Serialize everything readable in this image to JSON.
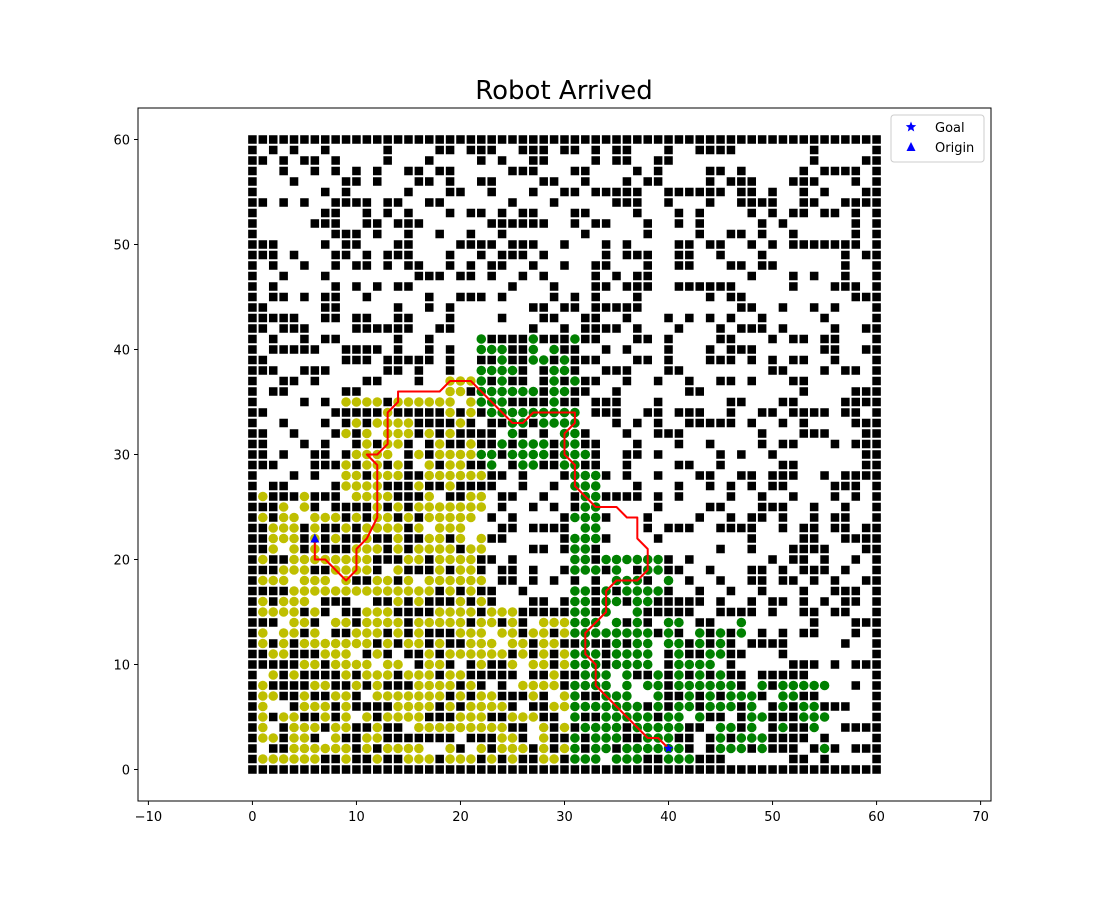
{
  "chart_data": {
    "type": "scatter",
    "title": "Robot Arrived",
    "xlabel": "",
    "ylabel": "",
    "xlim": [
      -11,
      71
    ],
    "ylim": [
      -3,
      63
    ],
    "x_ticks": [
      -10,
      0,
      10,
      20,
      30,
      40,
      50,
      60,
      70
    ],
    "y_ticks": [
      0,
      10,
      20,
      30,
      40,
      50,
      60
    ],
    "grid": false,
    "legend": {
      "placement": "top-right",
      "entries": [
        {
          "label": "Goal",
          "marker": "star",
          "color": "#0000ff"
        },
        {
          "label": "Origin",
          "marker": "triangle",
          "color": "#0000ff"
        }
      ]
    },
    "colors": {
      "obstacle": "#000000",
      "explored_from_origin": "#bfbf00",
      "explored_from_goal": "#008000",
      "path": "#ff0000",
      "markers": "#0000ff"
    },
    "grid_world": {
      "x_range": [
        0,
        60
      ],
      "y_range": [
        0,
        60
      ],
      "border": "obstacles on all four edges"
    },
    "series": [
      {
        "name": "Goal",
        "marker": "star",
        "points": [
          [
            40,
            2
          ]
        ]
      },
      {
        "name": "Origin",
        "marker": "triangle",
        "points": [
          [
            6,
            22
          ]
        ]
      },
      {
        "type": "line",
        "color": "#ff0000",
        "points": [
          [
            6,
            22
          ],
          [
            6,
            20
          ],
          [
            7,
            20
          ],
          [
            8,
            19
          ],
          [
            9,
            18
          ],
          [
            10,
            19
          ],
          [
            10,
            21
          ],
          [
            11,
            22
          ],
          [
            12,
            24
          ],
          [
            12,
            29
          ],
          [
            11,
            30
          ],
          [
            12,
            30
          ],
          [
            13,
            31
          ],
          [
            13,
            34
          ],
          [
            14,
            35
          ],
          [
            14,
            36
          ],
          [
            16,
            36
          ],
          [
            17,
            36
          ],
          [
            18,
            36
          ],
          [
            19,
            37
          ],
          [
            20,
            37
          ],
          [
            21,
            37
          ],
          [
            22,
            36
          ],
          [
            23,
            35
          ],
          [
            24,
            34
          ],
          [
            25,
            33
          ],
          [
            26,
            33
          ],
          [
            27,
            34
          ],
          [
            28,
            34
          ],
          [
            29,
            34
          ],
          [
            30,
            34
          ],
          [
            31,
            34
          ],
          [
            31,
            33
          ],
          [
            30,
            32
          ],
          [
            30,
            30
          ],
          [
            31,
            29
          ],
          [
            31,
            27
          ],
          [
            32,
            26
          ],
          [
            33,
            25
          ],
          [
            35,
            25
          ],
          [
            36,
            24
          ],
          [
            37,
            24
          ],
          [
            37,
            22
          ],
          [
            38,
            21
          ],
          [
            38,
            19
          ],
          [
            37,
            18
          ],
          [
            35,
            18
          ],
          [
            34,
            17
          ],
          [
            34,
            15
          ],
          [
            33,
            14
          ],
          [
            32,
            13
          ],
          [
            32,
            11
          ],
          [
            33,
            10
          ],
          [
            33,
            8
          ],
          [
            34,
            7
          ],
          [
            35,
            6
          ],
          [
            36,
            5
          ],
          [
            37,
            4
          ],
          [
            38,
            3
          ],
          [
            39,
            3
          ],
          [
            40,
            2
          ]
        ]
      }
    ],
    "explored_regions": [
      {
        "set": "explored_from_origin",
        "x_range": [
          1,
          8
        ],
        "y_range": [
          1,
          26
        ]
      },
      {
        "set": "explored_from_origin",
        "x_range": [
          9,
          18
        ],
        "y_range": [
          1,
          35
        ]
      },
      {
        "set": "explored_from_origin",
        "x_range": [
          19,
          22
        ],
        "y_range": [
          10,
          37
        ]
      },
      {
        "set": "explored_from_origin",
        "x_range": [
          18,
          30
        ],
        "y_range": [
          1,
          15
        ]
      },
      {
        "set": "explored_from_goal",
        "x_range": [
          22,
          31
        ],
        "y_range": [
          29,
          41
        ]
      },
      {
        "set": "explored_from_goal",
        "x_range": [
          31,
          33
        ],
        "y_range": [
          20,
          31
        ]
      },
      {
        "set": "explored_from_goal",
        "x_range": [
          31,
          40
        ],
        "y_range": [
          1,
          20
        ]
      },
      {
        "set": "explored_from_goal",
        "x_range": [
          40,
          47
        ],
        "y_range": [
          1,
          14
        ]
      },
      {
        "set": "explored_from_goal",
        "x_range": [
          47,
          55
        ],
        "y_range": [
          2,
          8
        ]
      }
    ],
    "obstacle_density": 0.38,
    "obstacle_seed": 20240611
  }
}
